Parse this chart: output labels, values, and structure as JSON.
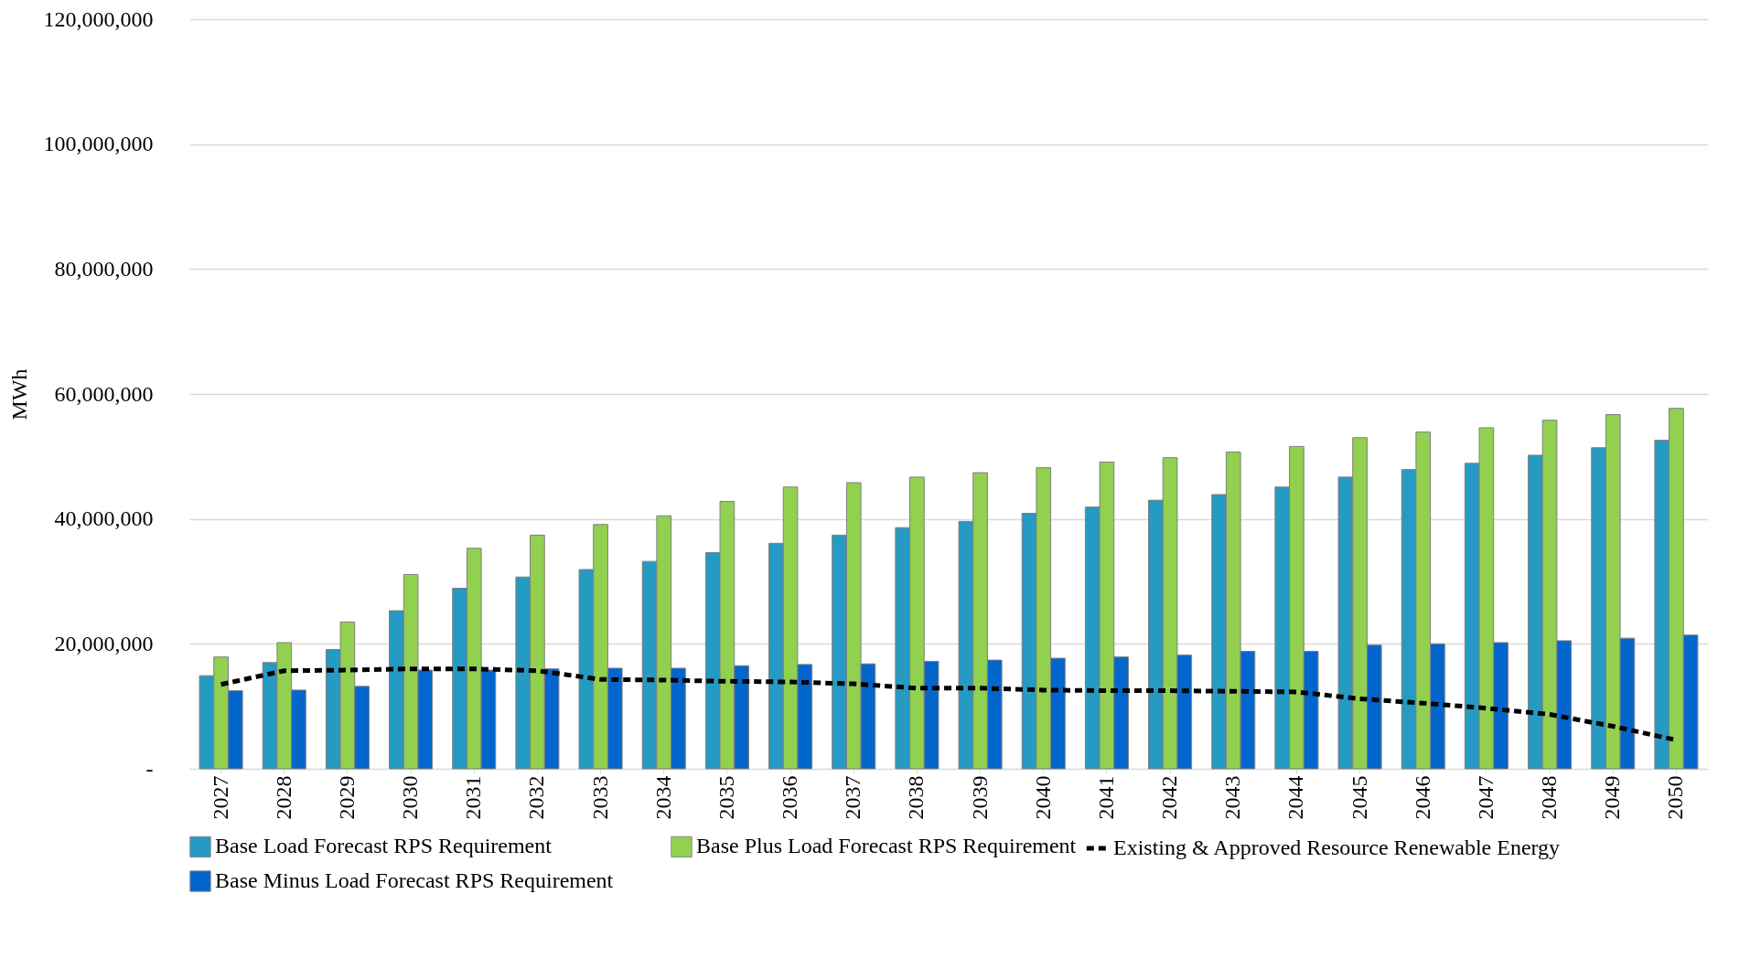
{
  "chart_data": {
    "type": "bar",
    "ylabel": "MWh",
    "categories": [
      "2027",
      "2028",
      "2029",
      "2030",
      "2031",
      "2032",
      "2033",
      "2034",
      "2035",
      "2036",
      "2037",
      "2038",
      "2039",
      "2040",
      "2041",
      "2042",
      "2043",
      "2044",
      "2045",
      "2046",
      "2047",
      "2048",
      "2049",
      "2050"
    ],
    "series": [
      {
        "name": "Base Load Forecast RPS Requirement",
        "color": "#259ac3",
        "values": [
          14900000,
          17000000,
          19100000,
          25300000,
          28900000,
          30700000,
          31900000,
          33200000,
          34600000,
          36100000,
          37400000,
          38600000,
          39600000,
          40900000,
          41900000,
          43000000,
          43900000,
          45100000,
          46700000,
          47900000,
          48900000,
          50200000,
          51400000,
          52600000
        ]
      },
      {
        "name": "Base Plus Load Forecast RPS Requirement",
        "color": "#92d050",
        "values": [
          17900000,
          20200000,
          23500000,
          31100000,
          35300000,
          37400000,
          39100000,
          40500000,
          42800000,
          45100000,
          45800000,
          46700000,
          47400000,
          48200000,
          49100000,
          49800000,
          50700000,
          51600000,
          53000000,
          53900000,
          54600000,
          55800000,
          56700000,
          57700000
        ]
      },
      {
        "name": "Base Minus Load Forecast RPS Requirement",
        "color": "#0366cc",
        "values": [
          12500000,
          12600000,
          13200000,
          15800000,
          15800000,
          16000000,
          16100000,
          16100000,
          16500000,
          16700000,
          16800000,
          17200000,
          17400000,
          17700000,
          17900000,
          18200000,
          18800000,
          18800000,
          19800000,
          20000000,
          20200000,
          20500000,
          20900000,
          21400000
        ]
      },
      {
        "name": "Existing & Approved Resource Renewable Energy",
        "type": "line",
        "line_style": "dashed",
        "color": "#000000",
        "values": [
          13500000,
          15700000,
          15800000,
          16000000,
          16000000,
          15700000,
          14300000,
          14200000,
          14000000,
          13900000,
          13600000,
          12900000,
          12900000,
          12600000,
          12500000,
          12500000,
          12400000,
          12300000,
          11200000,
          10500000,
          9700000,
          8700000,
          6800000,
          4600000
        ]
      }
    ],
    "ylim": [
      0,
      120000000
    ],
    "yticks": [
      {
        "value": 0,
        "label": "-"
      },
      {
        "value": 20000000,
        "label": "20,000,000"
      },
      {
        "value": 40000000,
        "label": "40,000,000"
      },
      {
        "value": 60000000,
        "label": "60,000,000"
      },
      {
        "value": 80000000,
        "label": "80,000,000"
      },
      {
        "value": 100000000,
        "label": "100,000,000"
      },
      {
        "value": 120000000,
        "label": "120,000,000"
      }
    ],
    "grid": "y",
    "legend": "bottom"
  }
}
